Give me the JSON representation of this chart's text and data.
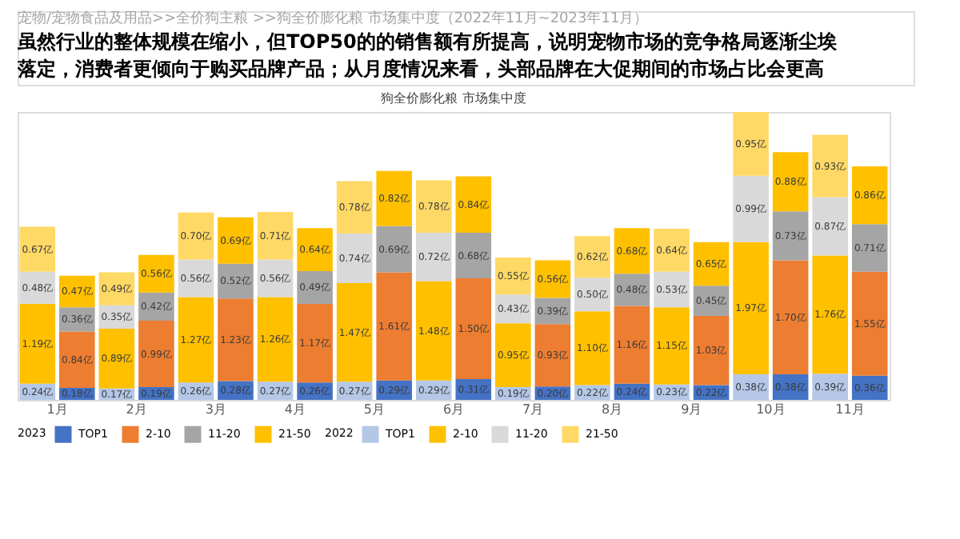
{
  "chart_data": {
    "type": "bar",
    "stacked": true,
    "title": "狗全价膨化粮 市场集中度",
    "annotations": [
      "宠物/宠物食品及用品>>全价狗主粮 >>狗全价膨化粮  市场集中度（2022年11月~2023年11月）",
      "虽然行业的整体规模在缩小，但TOP50的的销售额有所提高，说明宠物市场的竞争格局逐渐尘埃落定，消费者更倾向于购买品牌产品；从月度情况来看，头部品牌在大促期间的市场占比会更高",
      "2023",
      "2022"
    ],
    "categories": [
      "1月",
      null,
      "2月",
      null,
      "3月",
      null,
      "4月",
      null,
      "5月",
      null,
      "6月",
      null,
      "7月",
      null,
      "8月",
      null,
      "9月",
      null,
      "10月",
      null,
      "11月",
      null
    ],
    "legend": "bottom",
    "series": [
      {
        "name": "TOP1",
        "color": "#b4c7e7",
        "values": [
          0.24,
          null,
          0.17,
          null,
          0.26,
          null,
          0.27,
          null,
          0.27,
          null,
          0.29,
          null,
          0.19,
          null,
          0.22,
          null,
          0.23,
          null,
          0.38,
          null,
          0.39,
          null
        ],
        "value_labels": [
          "0.24亿",
          null,
          "0.17亿",
          null,
          "0.26亿",
          null,
          "0.27亿",
          null,
          "0.27亿",
          null,
          "0.29亿",
          null,
          "0.19亿",
          null,
          "0.22亿",
          null,
          "0.23亿",
          null,
          "0.38亿",
          null,
          "0.39亿",
          null
        ]
      },
      {
        "name": "2-10",
        "color": "#ffc000",
        "values": [
          1.19,
          null,
          0.89,
          null,
          1.27,
          null,
          1.26,
          null,
          1.47,
          null,
          1.48,
          null,
          0.95,
          null,
          1.1,
          null,
          1.15,
          null,
          1.97,
          null,
          1.76,
          null
        ],
        "value_labels": [
          "1.19亿",
          null,
          "0.89亿",
          null,
          "1.27亿",
          null,
          "1.26亿",
          null,
          "1.47亿",
          null,
          "1.48亿",
          null,
          "0.95亿",
          null,
          "1.10亿",
          null,
          "1.15亿",
          null,
          "1.97亿",
          null,
          "1.76亿",
          null
        ]
      },
      {
        "name": "11-20",
        "color": "#d9d9d9",
        "values": [
          0.48,
          null,
          0.35,
          null,
          0.56,
          null,
          0.56,
          null,
          0.74,
          null,
          0.72,
          null,
          0.43,
          null,
          0.5,
          null,
          0.53,
          null,
          0.99,
          null,
          0.87,
          null
        ],
        "value_labels": [
          "0.48亿",
          null,
          "0.35亿",
          null,
          "0.56亿",
          null,
          "0.56亿",
          null,
          "0.74亿",
          null,
          "0.72亿",
          null,
          "0.43亿",
          null,
          "0.50亿",
          null,
          "0.53亿",
          null,
          "0.99亿",
          null,
          "0.87亿",
          null
        ]
      },
      {
        "name": "21-50",
        "color": "#ffd966",
        "values": [
          0.67,
          null,
          0.49,
          null,
          0.7,
          null,
          0.71,
          null,
          0.78,
          null,
          0.78,
          null,
          0.55,
          null,
          0.62,
          null,
          0.64,
          null,
          0.95,
          null,
          0.93,
          null
        ],
        "value_labels": [
          "0.67亿",
          null,
          "0.49亿",
          null,
          "0.70亿",
          null,
          "0.71亿",
          null,
          "0.78亿",
          null,
          "0.78亿",
          null,
          "0.55亿",
          null,
          "0.62亿",
          null,
          "0.64亿",
          null,
          "0.95亿",
          null,
          "0.93亿",
          null
        ]
      },
      {
        "name": "TOP1",
        "color": "#4472c4",
        "values": [
          null,
          0.18,
          null,
          0.19,
          null,
          0.28,
          null,
          0.26,
          null,
          0.29,
          null,
          0.31,
          null,
          0.2,
          null,
          0.24,
          null,
          0.22,
          null,
          0.38,
          null,
          0.36
        ],
        "value_labels": [
          null,
          "0.18亿",
          null,
          "0.19亿",
          null,
          "0.28亿",
          null,
          "0.26亿",
          null,
          "0.29亿",
          null,
          "0.31亿",
          null,
          "0.20亿",
          null,
          "0.24亿",
          null,
          "0.22亿",
          null,
          "0.38亿",
          null,
          "0.36亿"
        ]
      },
      {
        "name": "2-10",
        "color": "#ed7d31",
        "values": [
          null,
          0.84,
          null,
          0.99,
          null,
          1.23,
          null,
          1.17,
          null,
          1.61,
          null,
          1.5,
          null,
          0.93,
          null,
          1.16,
          null,
          1.03,
          null,
          1.7,
          null,
          1.55
        ],
        "value_labels": [
          null,
          "0.84亿",
          null,
          "0.99亿",
          null,
          "1.23亿",
          null,
          "1.17亿",
          null,
          "1.61亿",
          null,
          "1.50亿",
          null,
          "0.93亿",
          null,
          "1.16亿",
          null,
          "1.03亿",
          null,
          "1.70亿",
          null,
          "1.55亿"
        ]
      },
      {
        "name": "11-20",
        "color": "#a5a5a5",
        "values": [
          null,
          0.36,
          null,
          0.42,
          null,
          0.52,
          null,
          0.49,
          null,
          0.69,
          null,
          0.68,
          null,
          0.39,
          null,
          0.48,
          null,
          0.45,
          null,
          0.73,
          null,
          0.71
        ],
        "value_labels": [
          null,
          "0.36亿",
          null,
          "0.42亿",
          null,
          "0.52亿",
          null,
          "0.49亿",
          null,
          "0.69亿",
          null,
          "0.68亿",
          null,
          "0.39亿",
          null,
          "0.48亿",
          null,
          "0.45亿",
          null,
          "0.73亿",
          null,
          "0.71亿"
        ]
      },
      {
        "name": "21-50",
        "color": "#ffc000",
        "values": [
          null,
          0.47,
          null,
          0.56,
          null,
          0.69,
          null,
          0.64,
          null,
          0.82,
          null,
          0.84,
          null,
          0.56,
          null,
          0.68,
          null,
          0.65,
          null,
          0.88,
          null,
          0.86
        ],
        "value_labels": [
          null,
          "0.47亿",
          null,
          "0.56亿",
          null,
          "0.69亿",
          null,
          "0.64亿",
          null,
          "0.82亿",
          null,
          "0.84亿",
          null,
          "0.56亿",
          null,
          "0.68亿",
          null,
          "0.65亿",
          null,
          "0.88亿",
          null,
          "0.86亿"
        ]
      }
    ]
  }
}
